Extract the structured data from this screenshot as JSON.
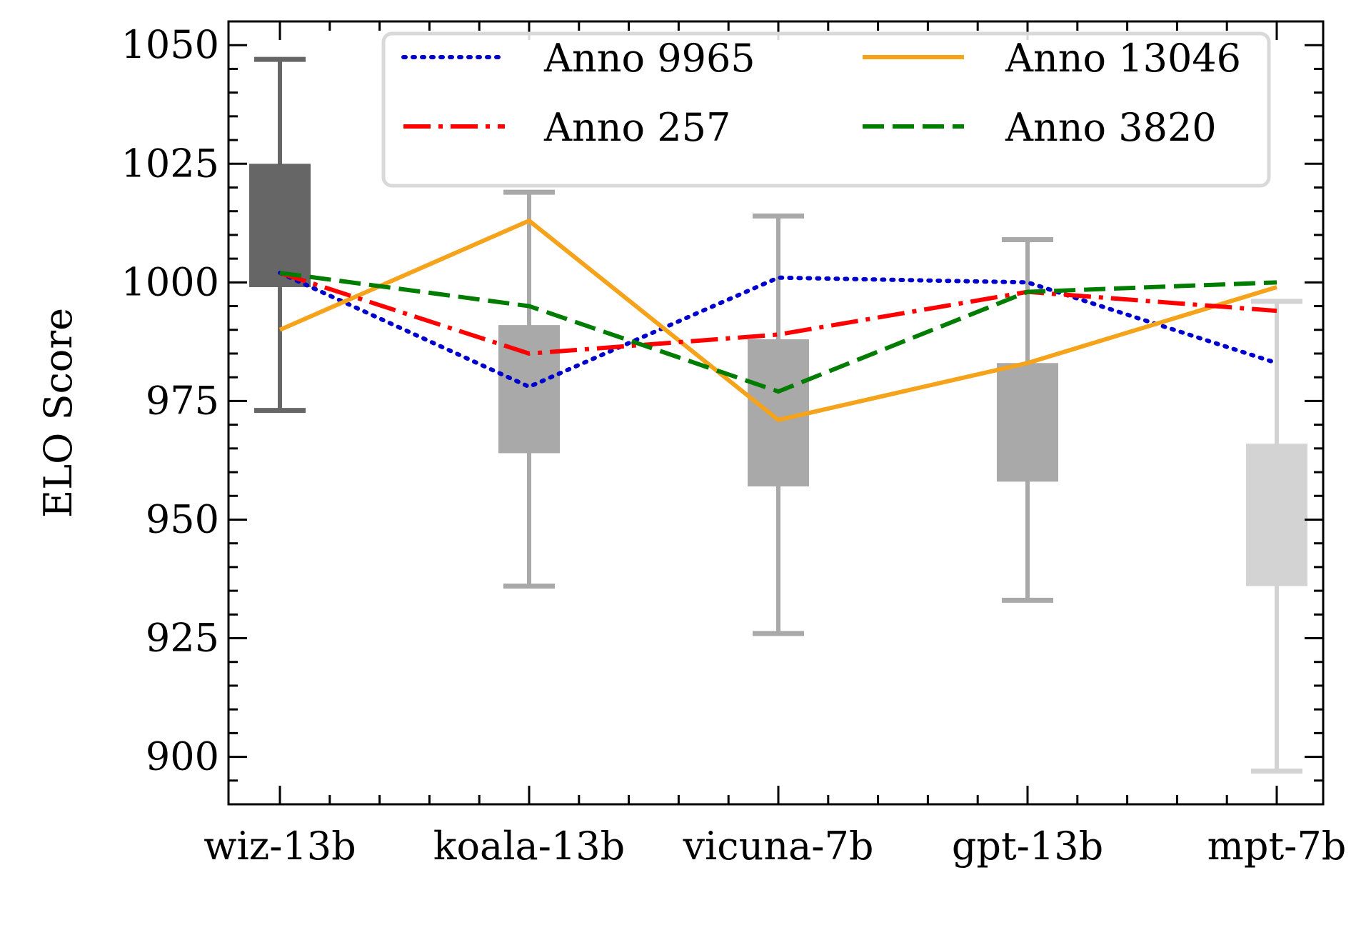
{
  "chart_data": {
    "type": "box+line",
    "title": "",
    "xlabel": "",
    "ylabel": "ELO Score",
    "ylim": [
      890,
      1055
    ],
    "yticks": [
      900,
      925,
      950,
      975,
      1000,
      1025,
      1050
    ],
    "categories": [
      "wiz-13b",
      "koala-13b",
      "vicuna-7b",
      "gpt-13b",
      "mpt-7b"
    ],
    "boxes": [
      {
        "category": "wiz-13b",
        "whisker_low": 973,
        "q1": 999,
        "q3": 1025,
        "whisker_high": 1047,
        "color": "#666666"
      },
      {
        "category": "koala-13b",
        "whisker_low": 936,
        "q1": 964,
        "q3": 991,
        "whisker_high": 1019,
        "color": "#a9a9a9"
      },
      {
        "category": "vicuna-7b",
        "whisker_low": 926,
        "q1": 957,
        "q3": 988,
        "whisker_high": 1014,
        "color": "#a9a9a9"
      },
      {
        "category": "gpt-13b",
        "whisker_low": 933,
        "q1": 958,
        "q3": 983,
        "whisker_high": 1009,
        "color": "#a9a9a9"
      },
      {
        "category": "mpt-7b",
        "whisker_low": 897,
        "q1": 936,
        "q3": 966,
        "whisker_high": 996,
        "color": "#d3d3d3"
      }
    ],
    "series": [
      {
        "name": "Anno 9965",
        "values": [
          1002,
          978,
          1001,
          1000,
          983
        ],
        "color": "#0000cc",
        "style": "dotted"
      },
      {
        "name": "Anno 13046",
        "values": [
          990,
          1013,
          971,
          983,
          999
        ],
        "color": "#f5a31a",
        "style": "solid"
      },
      {
        "name": "Anno 257",
        "values": [
          1002,
          985,
          989,
          998,
          994
        ],
        "color": "#ff0000",
        "style": "dashdot"
      },
      {
        "name": "Anno 3820",
        "values": [
          1002,
          995,
          977,
          998,
          1000
        ],
        "color": "#007d00",
        "style": "dashed"
      }
    ],
    "legend": {
      "position": "top-right",
      "columns": 2
    }
  }
}
